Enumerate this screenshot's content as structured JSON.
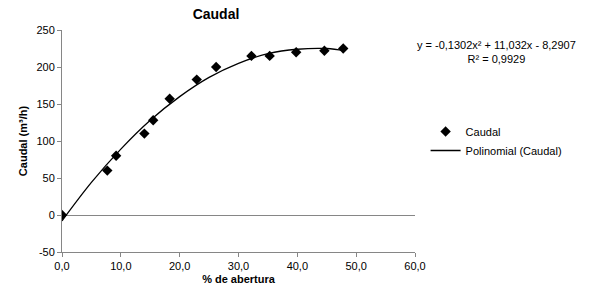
{
  "chart_data": {
    "type": "scatter",
    "title": "Caudal",
    "x_label": "% de abertura",
    "y_label": "Caudal (m³/h)",
    "xlim": [
      0,
      60
    ],
    "xticks": [
      {
        "value": 0,
        "label": "0,0"
      },
      {
        "value": 10,
        "label": "10,0"
      },
      {
        "value": 20,
        "label": "20,0"
      },
      {
        "value": 30,
        "label": "30,0"
      },
      {
        "value": 40,
        "label": "40,0"
      },
      {
        "value": 50,
        "label": "50,0"
      },
      {
        "value": 60,
        "label": "60,0"
      }
    ],
    "ylim": [
      -50,
      250
    ],
    "yticks": [
      -50,
      0,
      50,
      100,
      150,
      200,
      250
    ],
    "grid": false,
    "legend": "right",
    "annotations": [
      "y = -0,1302x² + 11,032x - 8,2907",
      "R² = 0,9929"
    ],
    "series": [
      {
        "name": "Caudal",
        "type": "scatter",
        "marker": "diamond",
        "color": "#000000",
        "x": [
          0,
          7.7,
          9.2,
          14,
          15.5,
          18.3,
          22.9,
          26.2,
          32.2,
          35.3,
          39.8,
          44.6,
          47.8
        ],
        "values": [
          0,
          60,
          80,
          110,
          128,
          157,
          183,
          200,
          215,
          215,
          220,
          222,
          225
        ]
      },
      {
        "name": "Polinomial (Caudal)",
        "type": "line",
        "line_style": "solid",
        "color": "#000000",
        "x": [
          0,
          5,
          10,
          15,
          20,
          25,
          30,
          35,
          40,
          45,
          48
        ],
        "values": [
          -8,
          44,
          89,
          128,
          160,
          186,
          205,
          218,
          224,
          225,
          222
        ]
      }
    ]
  }
}
